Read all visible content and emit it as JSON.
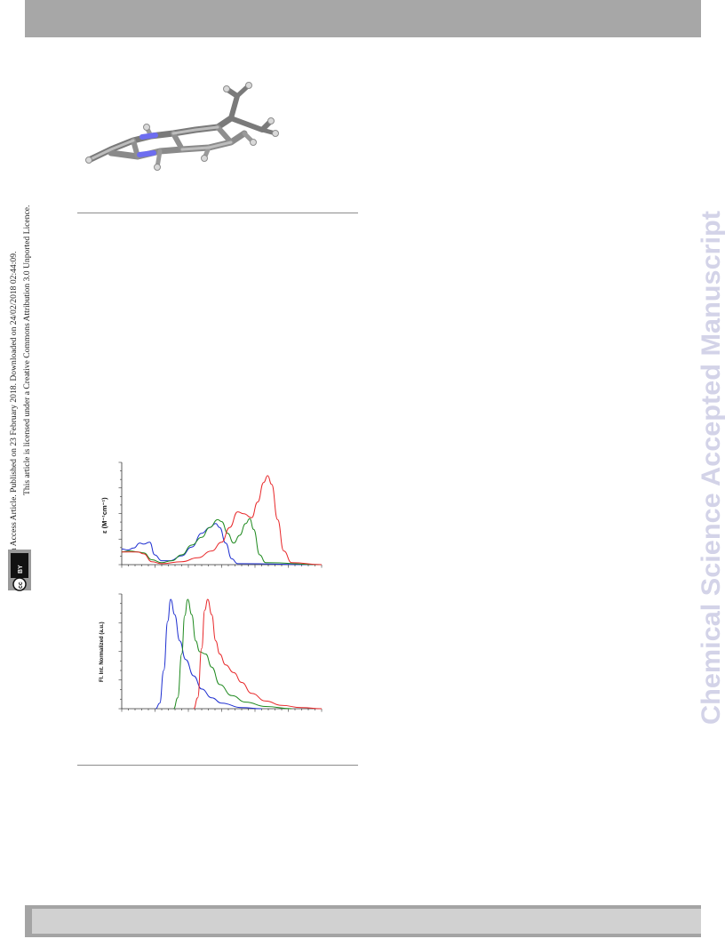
{
  "watermark": {
    "text": "Chemical Science Accepted Manuscript",
    "color": "#d3d3e8"
  },
  "license": {
    "line1": "Open Access Article. Published on 23 February 2018. Downloaded on 24/02/2018 02:44:09.",
    "line2": "This article is licensed under a Creative Commons Attribution 3.0 Unported Licence.",
    "badge_cc": "cc",
    "badge_by": "BY"
  },
  "colors": {
    "red": "#e8282a",
    "green": "#1f8a1f",
    "blue": "#1e2fd0",
    "bar": "#a7a7a7",
    "molecule_n": "#6d6df0"
  },
  "chart_data": [
    {
      "type": "line",
      "ylabel": "ε (M⁻¹cm⁻¹)",
      "xlabel": "",
      "x_units": "",
      "ylim": [
        0,
        1
      ],
      "series": [
        {
          "color": "#1e2fd0",
          "points": [
            [
              0,
              0.16
            ],
            [
              0.03,
              0.15
            ],
            [
              0.06,
              0.17
            ],
            [
              0.09,
              0.22
            ],
            [
              0.11,
              0.21
            ],
            [
              0.14,
              0.23
            ],
            [
              0.165,
              0.1
            ],
            [
              0.2,
              0.04
            ],
            [
              0.24,
              0.04
            ],
            [
              0.3,
              0.09
            ],
            [
              0.35,
              0.18
            ],
            [
              0.4,
              0.32
            ],
            [
              0.44,
              0.38
            ],
            [
              0.47,
              0.42
            ],
            [
              0.49,
              0.38
            ],
            [
              0.52,
              0.22
            ],
            [
              0.55,
              0.06
            ],
            [
              0.58,
              0.01
            ],
            [
              1,
              0
            ]
          ]
        },
        {
          "color": "#1f8a1f",
          "points": [
            [
              0,
              0.13
            ],
            [
              0.04,
              0.14
            ],
            [
              0.08,
              0.13
            ],
            [
              0.11,
              0.12
            ],
            [
              0.15,
              0.05
            ],
            [
              0.2,
              0.02
            ],
            [
              0.25,
              0.04
            ],
            [
              0.3,
              0.1
            ],
            [
              0.35,
              0.2
            ],
            [
              0.4,
              0.28
            ],
            [
              0.44,
              0.38
            ],
            [
              0.48,
              0.46
            ],
            [
              0.5,
              0.44
            ],
            [
              0.53,
              0.32
            ],
            [
              0.56,
              0.22
            ],
            [
              0.59,
              0.3
            ],
            [
              0.62,
              0.42
            ],
            [
              0.64,
              0.47
            ],
            [
              0.66,
              0.36
            ],
            [
              0.69,
              0.1
            ],
            [
              0.72,
              0.02
            ],
            [
              1,
              0
            ]
          ]
        },
        {
          "color": "#e8282a",
          "points": [
            [
              0,
              0.13
            ],
            [
              0.04,
              0.13
            ],
            [
              0.08,
              0.13
            ],
            [
              0.11,
              0.11
            ],
            [
              0.15,
              0.03
            ],
            [
              0.2,
              0.01
            ],
            [
              0.3,
              0.03
            ],
            [
              0.38,
              0.07
            ],
            [
              0.45,
              0.14
            ],
            [
              0.5,
              0.23
            ],
            [
              0.54,
              0.38
            ],
            [
              0.58,
              0.54
            ],
            [
              0.61,
              0.52
            ],
            [
              0.65,
              0.48
            ],
            [
              0.68,
              0.64
            ],
            [
              0.71,
              0.84
            ],
            [
              0.73,
              0.91
            ],
            [
              0.75,
              0.82
            ],
            [
              0.78,
              0.46
            ],
            [
              0.81,
              0.14
            ],
            [
              0.85,
              0.02
            ],
            [
              1,
              0
            ]
          ]
        }
      ]
    },
    {
      "type": "line",
      "ylabel": "Fl. Int. Normalized (a.u.)",
      "xlabel": "",
      "ylim": [
        0,
        1
      ],
      "series": [
        {
          "color": "#1e2fd0",
          "points": [
            [
              0.17,
              0.0
            ],
            [
              0.19,
              0.05
            ],
            [
              0.21,
              0.35
            ],
            [
              0.23,
              0.8
            ],
            [
              0.245,
              1.0
            ],
            [
              0.265,
              0.86
            ],
            [
              0.29,
              0.62
            ],
            [
              0.32,
              0.45
            ],
            [
              0.36,
              0.3
            ],
            [
              0.4,
              0.18
            ],
            [
              0.45,
              0.1
            ],
            [
              0.5,
              0.05
            ],
            [
              0.6,
              0.01
            ],
            [
              0.7,
              0
            ]
          ]
        },
        {
          "color": "#1f8a1f",
          "points": [
            [
              0.26,
              0.0
            ],
            [
              0.28,
              0.1
            ],
            [
              0.3,
              0.5
            ],
            [
              0.315,
              0.85
            ],
            [
              0.33,
              1.0
            ],
            [
              0.35,
              0.86
            ],
            [
              0.37,
              0.62
            ],
            [
              0.39,
              0.52
            ],
            [
              0.42,
              0.5
            ],
            [
              0.45,
              0.38
            ],
            [
              0.49,
              0.22
            ],
            [
              0.55,
              0.12
            ],
            [
              0.62,
              0.06
            ],
            [
              0.72,
              0.02
            ],
            [
              0.85,
              0
            ]
          ]
        },
        {
          "color": "#e8282a",
          "points": [
            [
              0.36,
              0.0
            ],
            [
              0.38,
              0.1
            ],
            [
              0.4,
              0.55
            ],
            [
              0.415,
              0.9
            ],
            [
              0.43,
              1.0
            ],
            [
              0.45,
              0.86
            ],
            [
              0.47,
              0.62
            ],
            [
              0.49,
              0.5
            ],
            [
              0.52,
              0.4
            ],
            [
              0.56,
              0.33
            ],
            [
              0.6,
              0.24
            ],
            [
              0.65,
              0.14
            ],
            [
              0.72,
              0.07
            ],
            [
              0.8,
              0.03
            ],
            [
              0.9,
              0.01
            ],
            [
              1,
              0
            ]
          ]
        }
      ]
    }
  ]
}
